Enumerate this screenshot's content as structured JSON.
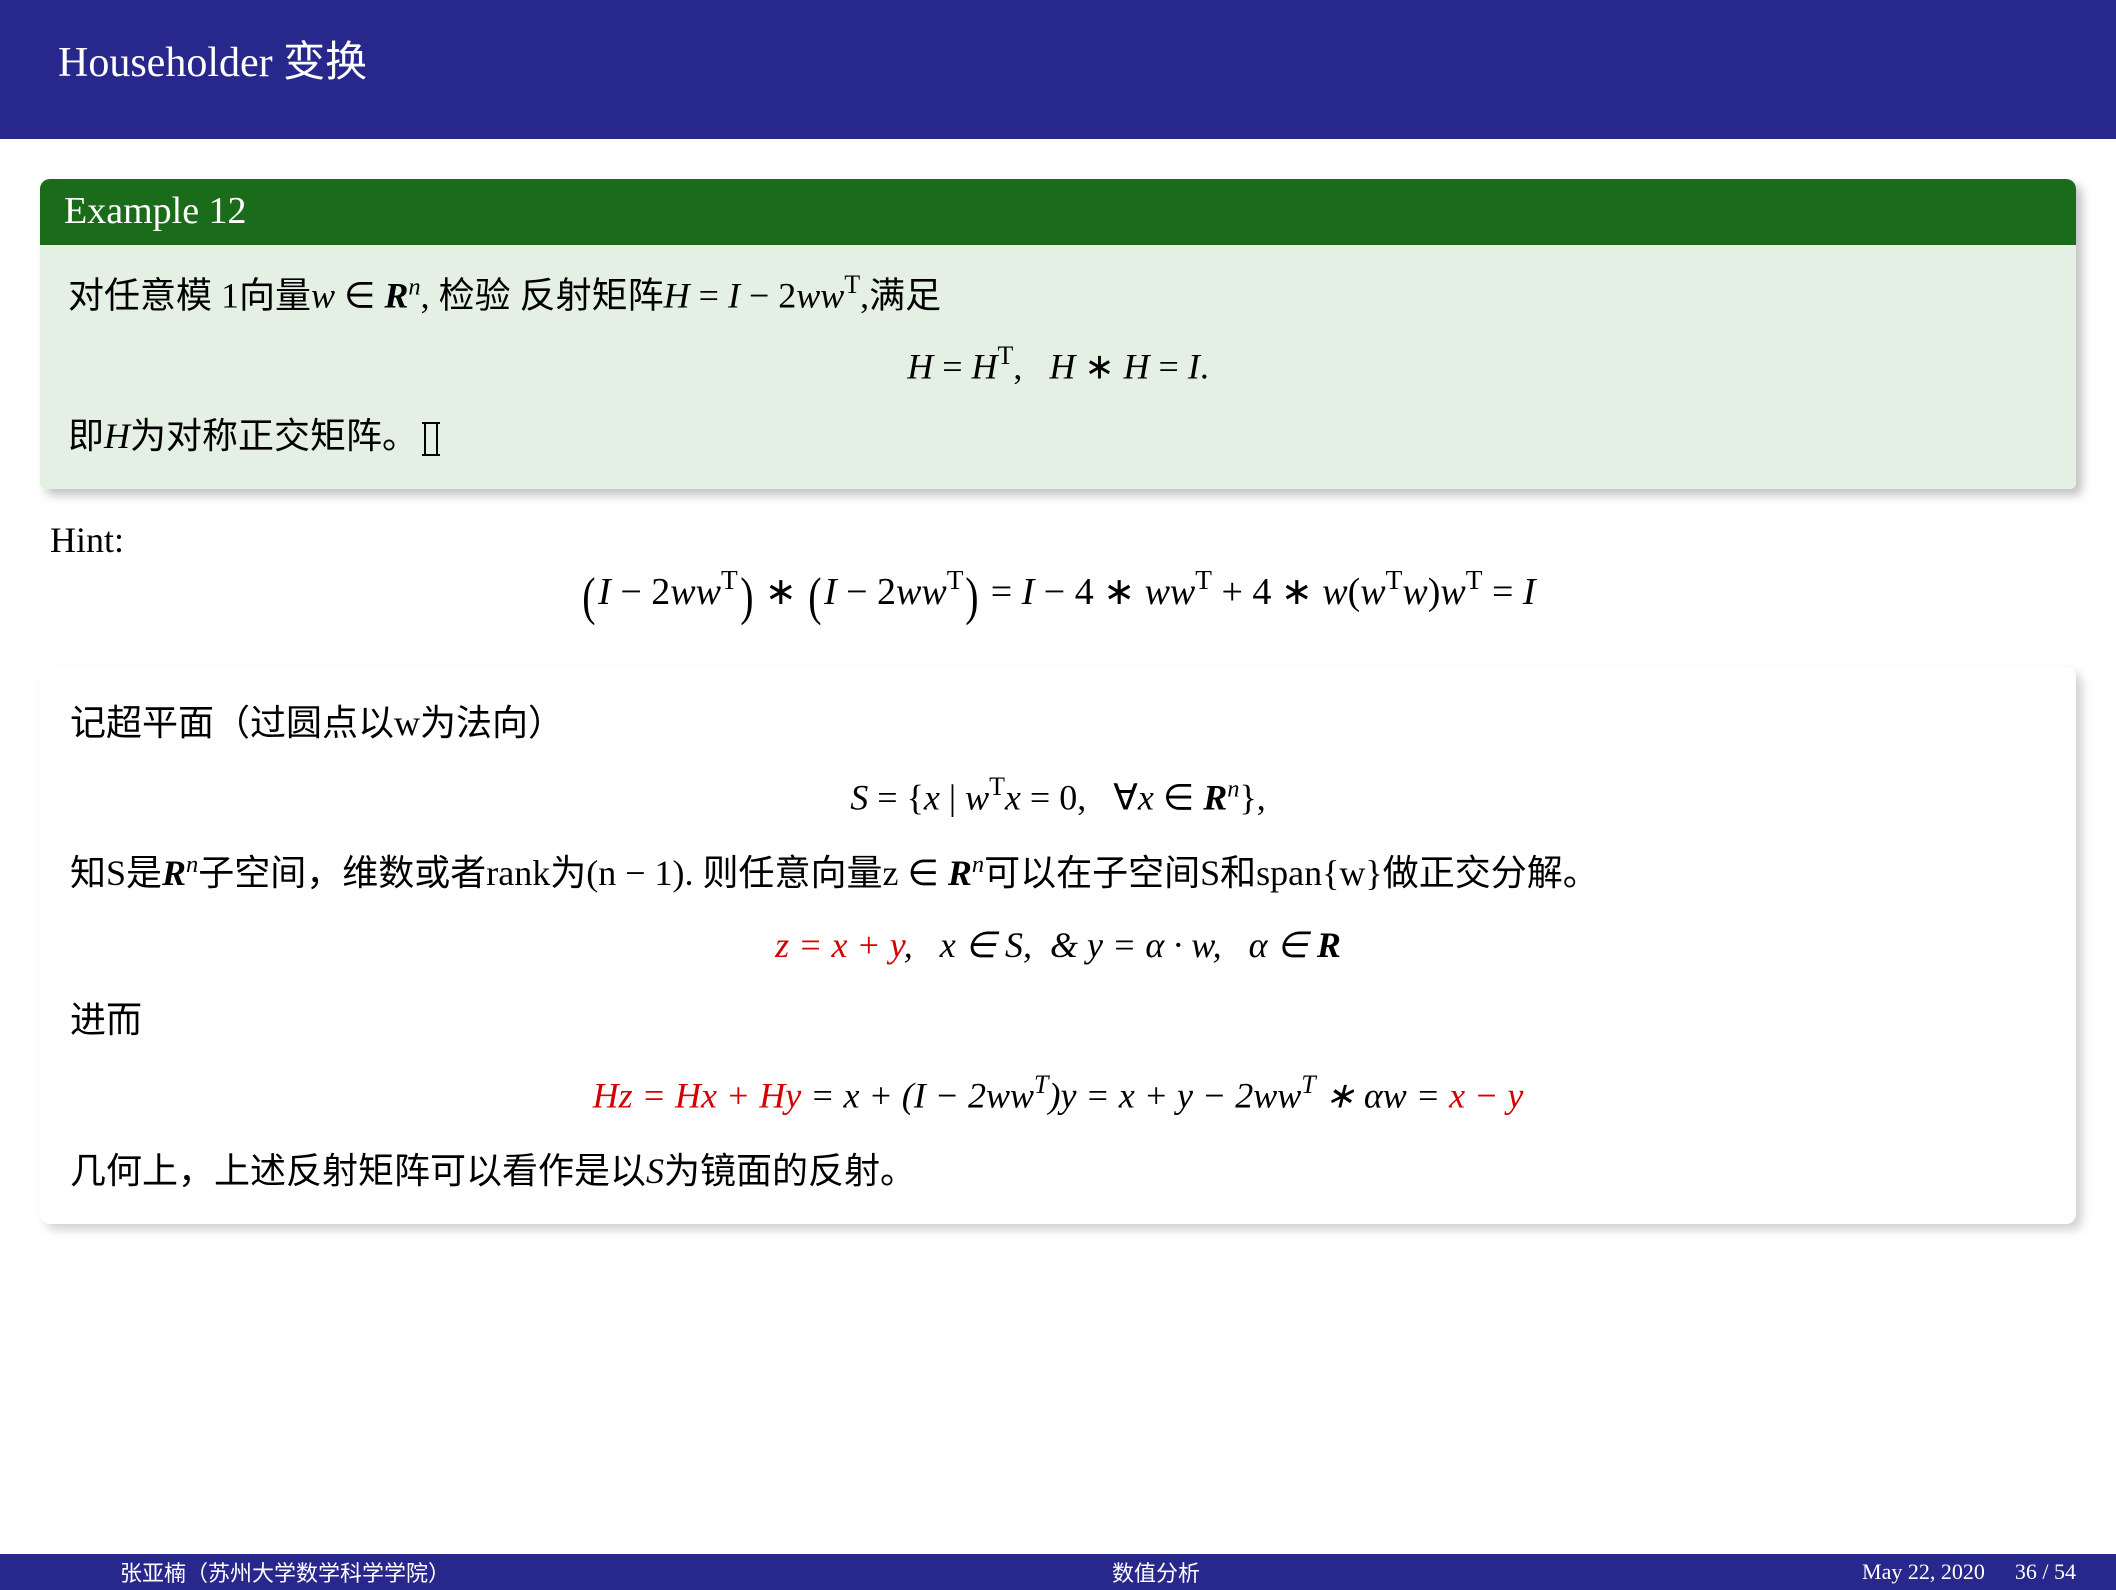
{
  "colors": {
    "title_bg": "#28288c",
    "title_fg": "#ffffff",
    "example_header_bg": "#1a6b1a",
    "example_body_bg": "#e4f0e4",
    "accent_red": "#d40000",
    "footer_bg": "#28288c",
    "footer_fg": "#ffffff",
    "body_bg": "#ffffff",
    "text": "#000000"
  },
  "typography": {
    "base_font": "Times New Roman / SimSun serif",
    "title_size_pt": 30,
    "body_size_pt": 26,
    "footer_size_pt": 16
  },
  "title": "Householder 变换",
  "example": {
    "header": "Example 12",
    "line1_a": "对任意模 1向量",
    "line1_b": ", 检验 反射矩阵",
    "line1_c": ",满足",
    "eq1_a": "H = H",
    "eq1_b": ",   H ∗ H = I.",
    "line2": "即H为对称正交矩阵。"
  },
  "hint": {
    "label": "Hint:",
    "eq_rhs_tail": " = I"
  },
  "block2": {
    "line1": "记超平面（过圆点以w为法向）",
    "set_eq_a": "S = {x | w",
    "set_eq_b": "x = 0,   ∀x ∈ ",
    "set_eq_c": "},",
    "line2_a": "知S是",
    "line2_b": "子空间，维数或者rank为(n − 1). 则任意向量z ∈ ",
    "line2_c": "可以在子空间S和span{w}做正交分解。",
    "eq2_a": "z = x + y",
    "eq2_b": ",   x ∈ S,  & y = α · w,   α ∈ ",
    "line3": "进而",
    "eq3_a": "Hz = Hx + Hy",
    "eq3_b": " = x + (I − 2ww",
    "eq3_c": ")y = x + y − 2ww",
    "eq3_d": " ∗ αw = ",
    "eq3_e": "x − y",
    "line4": "几何上，上述反射矩阵可以看作是以S为镜面的反射。"
  },
  "footer": {
    "author": "张亚楠（苏州大学数学科学学院）",
    "course": "数值分析",
    "date": "May 22, 2020",
    "page": "36 / 54"
  }
}
